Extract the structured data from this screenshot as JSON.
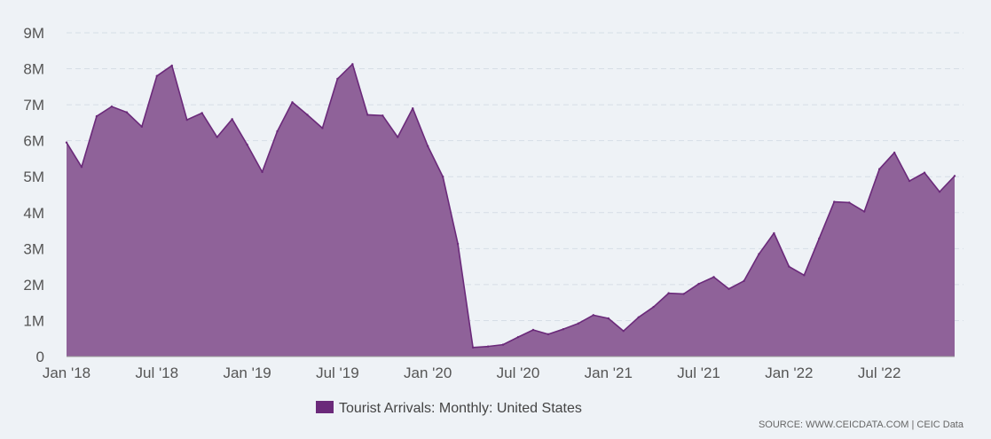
{
  "chart_data": {
    "type": "area",
    "title": "",
    "xlabel": "",
    "ylabel": "",
    "ylim": [
      0,
      9000000
    ],
    "y_ticks": [
      {
        "value": 0,
        "label": "0"
      },
      {
        "value": 1000000,
        "label": "1M"
      },
      {
        "value": 2000000,
        "label": "2M"
      },
      {
        "value": 3000000,
        "label": "3M"
      },
      {
        "value": 4000000,
        "label": "4M"
      },
      {
        "value": 5000000,
        "label": "5M"
      },
      {
        "value": 6000000,
        "label": "6M"
      },
      {
        "value": 7000000,
        "label": "7M"
      },
      {
        "value": 8000000,
        "label": "8M"
      },
      {
        "value": 9000000,
        "label": "9M"
      }
    ],
    "x_ticks": [
      {
        "index": 0,
        "label": "Jan '18"
      },
      {
        "index": 6,
        "label": "Jul '18"
      },
      {
        "index": 12,
        "label": "Jan '19"
      },
      {
        "index": 18,
        "label": "Jul '19"
      },
      {
        "index": 24,
        "label": "Jan '20"
      },
      {
        "index": 30,
        "label": "Jul '20"
      },
      {
        "index": 36,
        "label": "Jan '21"
      },
      {
        "index": 42,
        "label": "Jul '21"
      },
      {
        "index": 48,
        "label": "Jan '22"
      },
      {
        "index": 54,
        "label": "Jul '22"
      }
    ],
    "x": [
      "2018-01",
      "2018-02",
      "2018-03",
      "2018-04",
      "2018-05",
      "2018-06",
      "2018-07",
      "2018-08",
      "2018-09",
      "2018-10",
      "2018-11",
      "2018-12",
      "2019-01",
      "2019-02",
      "2019-03",
      "2019-04",
      "2019-05",
      "2019-06",
      "2019-07",
      "2019-08",
      "2019-09",
      "2019-10",
      "2019-11",
      "2019-12",
      "2020-01",
      "2020-02",
      "2020-03",
      "2020-04",
      "2020-05",
      "2020-06",
      "2020-07",
      "2020-08",
      "2020-09",
      "2020-10",
      "2020-11",
      "2020-12",
      "2021-01",
      "2021-02",
      "2021-03",
      "2021-04",
      "2021-05",
      "2021-06",
      "2021-07",
      "2021-08",
      "2021-09",
      "2021-10",
      "2021-11",
      "2021-12",
      "2022-01",
      "2022-02",
      "2022-03",
      "2022-04",
      "2022-05",
      "2022-06",
      "2022-07",
      "2022-08",
      "2022-09",
      "2022-10",
      "2022-11",
      "2022-12"
    ],
    "series": [
      {
        "name": "Tourist Arrivals: Monthly: United States",
        "color": "#8f6299",
        "line_color": "#6b2a7a",
        "values": [
          5950000,
          5270000,
          6680000,
          6950000,
          6790000,
          6390000,
          7800000,
          8090000,
          6580000,
          6770000,
          6100000,
          6600000,
          5890000,
          5130000,
          6260000,
          7070000,
          6720000,
          6350000,
          7720000,
          8130000,
          6720000,
          6700000,
          6100000,
          6900000,
          5850000,
          5000000,
          3130000,
          250000,
          280000,
          330000,
          540000,
          740000,
          620000,
          760000,
          920000,
          1150000,
          1060000,
          710000,
          1090000,
          1380000,
          1760000,
          1740000,
          2020000,
          2210000,
          1880000,
          2100000,
          2850000,
          3430000,
          2500000,
          2260000,
          3280000,
          4300000,
          4280000,
          4030000,
          5210000,
          5670000,
          4880000,
          5110000,
          4580000,
          5020000
        ]
      }
    ]
  },
  "legend": {
    "label": "Tourist Arrivals: Monthly: United States",
    "swatch_color": "#6b2a7a"
  },
  "source": {
    "text": "SOURCE: WWW.CEICDATA.COM | CEIC Data"
  }
}
